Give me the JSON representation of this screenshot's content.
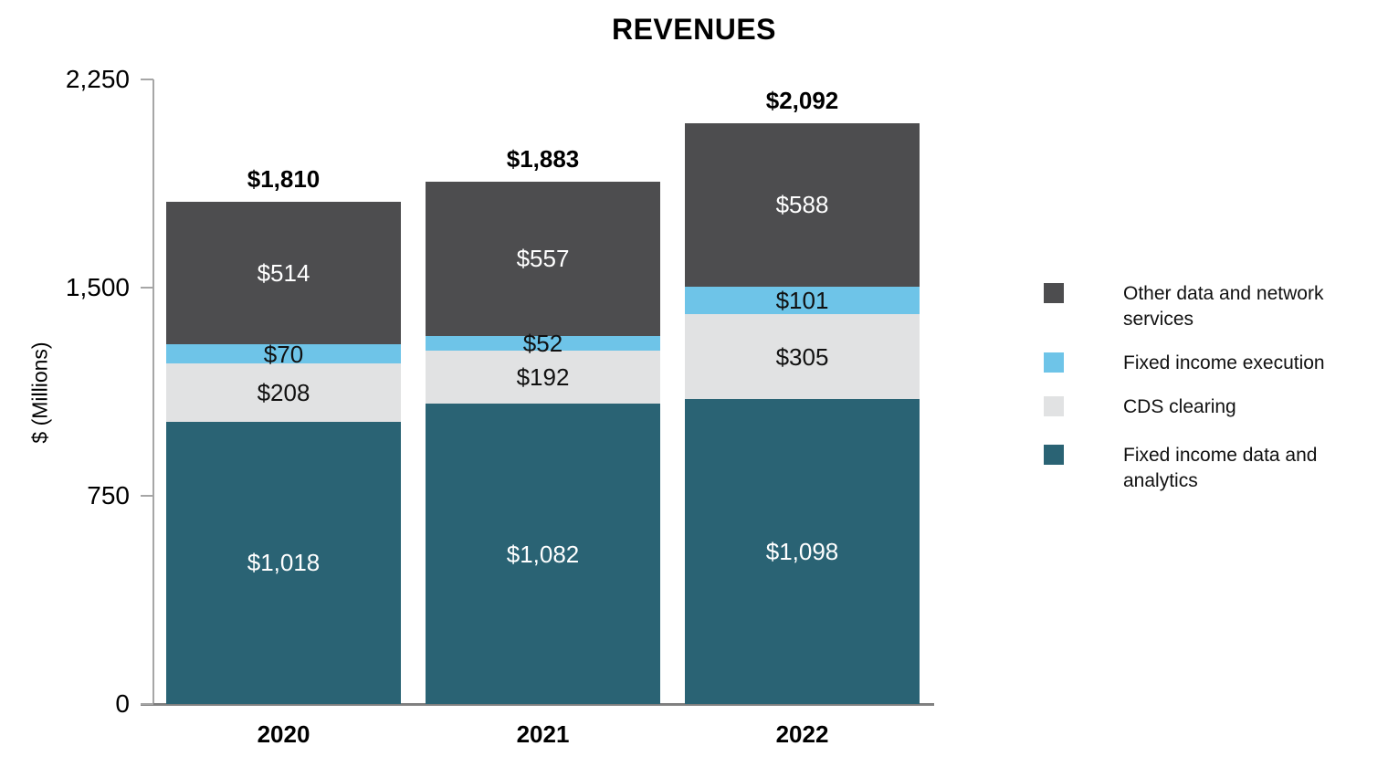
{
  "chart_data": {
    "type": "bar",
    "stacked": true,
    "title": "REVENUES",
    "ylabel": "$ (Millions)",
    "xlabel": "",
    "categories": [
      "2020",
      "2021",
      "2022"
    ],
    "series": [
      {
        "name": "Fixed income data and analytics",
        "color": "#2A6374",
        "label_color": "#FFFFFF",
        "values": [
          1018,
          1082,
          1098
        ],
        "labels": [
          "$1,018",
          "$1,082",
          "$1,098"
        ]
      },
      {
        "name": "CDS clearing",
        "color": "#E1E2E3",
        "label_color": "#111111",
        "values": [
          208,
          192,
          305
        ],
        "labels": [
          "$208",
          "$192",
          "$305"
        ]
      },
      {
        "name": "Fixed income execution",
        "color": "#6EC4E8",
        "label_color": "#111111",
        "values": [
          70,
          52,
          101
        ],
        "labels": [
          "$70",
          "$52",
          "$101"
        ]
      },
      {
        "name": "Other data and network services",
        "color": "#4D4D4F",
        "label_color": "#FFFFFF",
        "values": [
          514,
          557,
          588
        ],
        "labels": [
          "$514",
          "$557",
          "$588"
        ]
      }
    ],
    "totals": {
      "values": [
        1810,
        1883,
        2092
      ],
      "labels": [
        "$1,810",
        "$1,883",
        "$2,092"
      ]
    },
    "ylim": [
      0,
      2250
    ],
    "y_ticks": {
      "values": [
        2250,
        1500,
        750,
        0
      ],
      "labels": [
        "2,250",
        "1,500",
        "750",
        "0"
      ]
    },
    "grid": false,
    "legend_position": "right",
    "legend": [
      {
        "label": "Other data and network services",
        "color": "#4D4D4F"
      },
      {
        "label": "Fixed income execution",
        "color": "#6EC4E8"
      },
      {
        "label": "CDS clearing",
        "color": "#E1E2E3"
      },
      {
        "label": "Fixed income data and analytics",
        "color": "#2A6374"
      }
    ]
  }
}
